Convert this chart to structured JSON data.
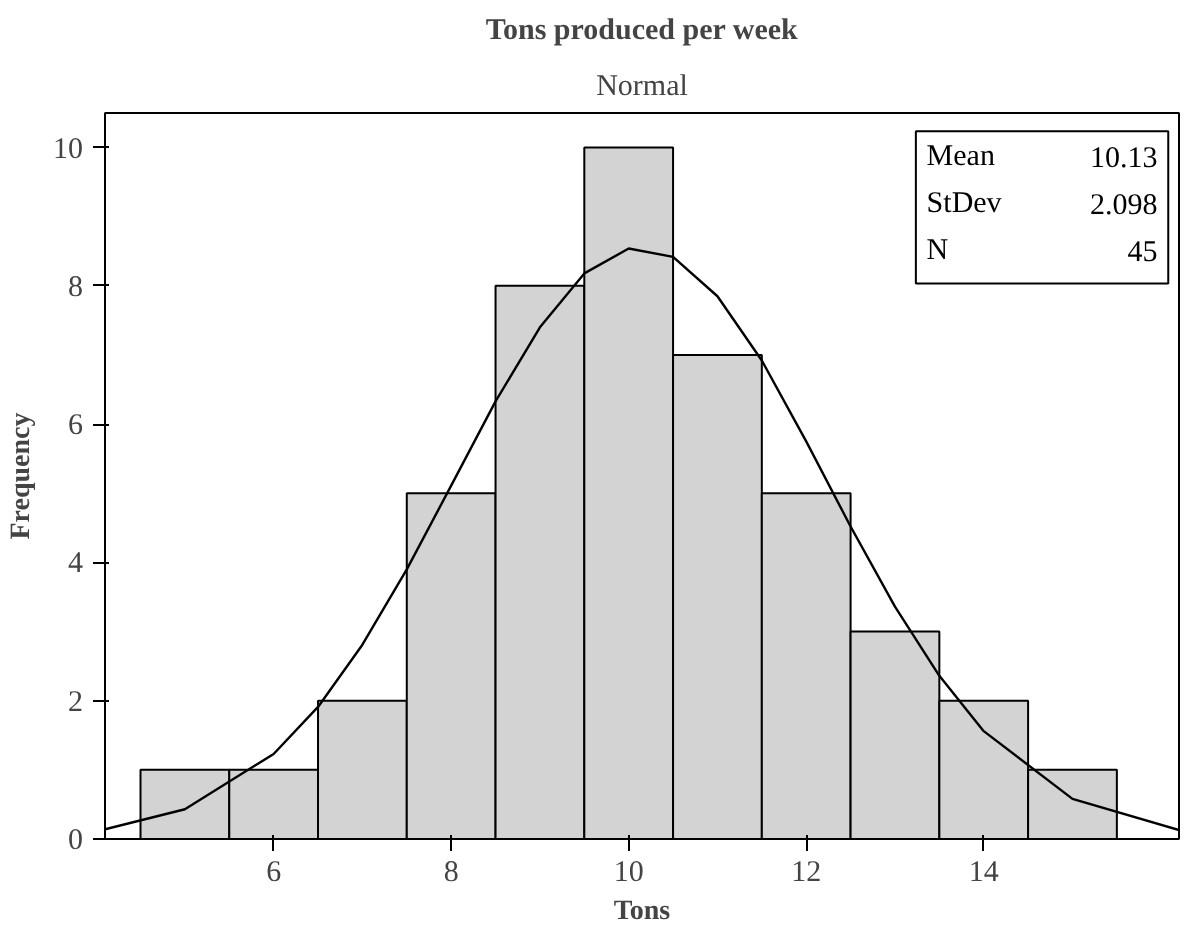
{
  "chart_data": {
    "type": "histogram",
    "title": "Tons produced per week",
    "subtitle": "Normal",
    "xlabel": "Tons",
    "ylabel": "Frequency",
    "bins": [
      4.5,
      5.5,
      6.5,
      7.5,
      8.5,
      9.5,
      10.5,
      11.5,
      12.5,
      13.5,
      14.5,
      15.5
    ],
    "values": [
      1,
      1,
      2,
      5,
      8,
      10,
      7,
      5,
      3,
      2,
      1
    ],
    "color": "#d3d3d3",
    "series": [
      {
        "type": "line",
        "color": "#000000",
        "x": [
          4.1,
          5,
          6,
          6.5,
          7,
          7.5,
          8,
          8.5,
          9,
          9.5,
          10,
          10.5,
          11,
          11.5,
          12,
          12.5,
          13,
          13.5,
          14,
          15,
          16.2
        ],
        "values": [
          0.14,
          0.43,
          1.23,
          1.91,
          2.81,
          3.9,
          5.11,
          6.33,
          7.4,
          8.18,
          8.54,
          8.42,
          7.85,
          6.92,
          5.75,
          4.52,
          3.36,
          2.36,
          1.56,
          0.58,
          0.13
        ]
      }
    ],
    "xlim": [
      4.1,
      16.2
    ],
    "ylim": [
      0,
      10.5
    ],
    "xticks": [
      6,
      8,
      10,
      12,
      14
    ],
    "yticks": [
      0,
      2,
      4,
      6,
      8,
      10
    ],
    "annotations": [
      [
        "Mean",
        "10.13"
      ],
      [
        "StDev",
        "2.098"
      ],
      [
        "N",
        "45"
      ]
    ],
    "grid": false
  }
}
